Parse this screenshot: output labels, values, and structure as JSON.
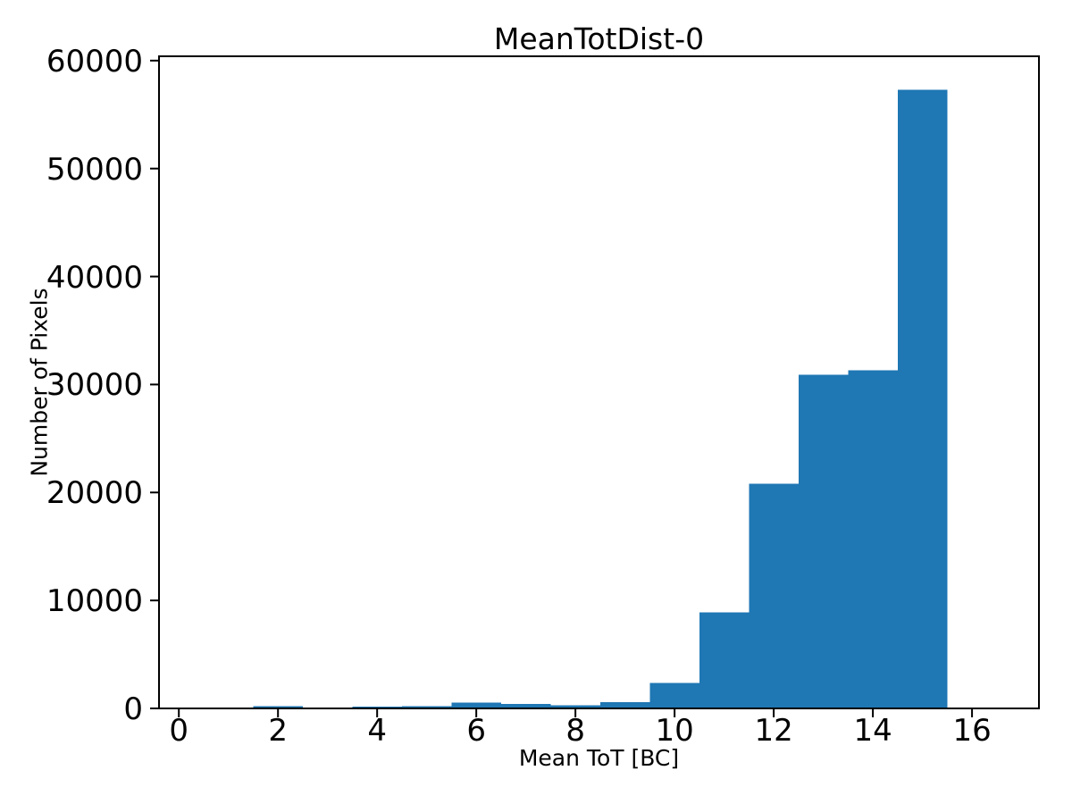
{
  "figure": {
    "background": "#ffffff"
  },
  "chart_data": {
    "type": "bar",
    "subtype": "histogram",
    "title": "MeanTotDist-0",
    "xlabel": "Mean ToT [BC]",
    "ylabel": "Number of Pixels",
    "bin_edges": [
      -0.5,
      0.5,
      1.5,
      2.5,
      3.5,
      4.5,
      5.5,
      6.5,
      7.5,
      8.5,
      9.5,
      10.5,
      11.5,
      12.5,
      13.5,
      14.5,
      15.5
    ],
    "counts": [
      0,
      0,
      210,
      0,
      160,
      200,
      520,
      430,
      300,
      600,
      2350,
      8900,
      20800,
      30900,
      31300,
      57300
    ],
    "x_ticks": [
      0,
      2,
      4,
      6,
      8,
      10,
      12,
      14,
      16
    ],
    "y_ticks": [
      0,
      10000,
      20000,
      30000,
      40000,
      50000,
      60000
    ],
    "xlim": [
      -0.4,
      17.35
    ],
    "ylim": [
      0,
      60400
    ],
    "grid": false,
    "legend": false,
    "bar_color": "#1f77b4",
    "axis_color": "#000000",
    "text_color": "#000000"
  }
}
